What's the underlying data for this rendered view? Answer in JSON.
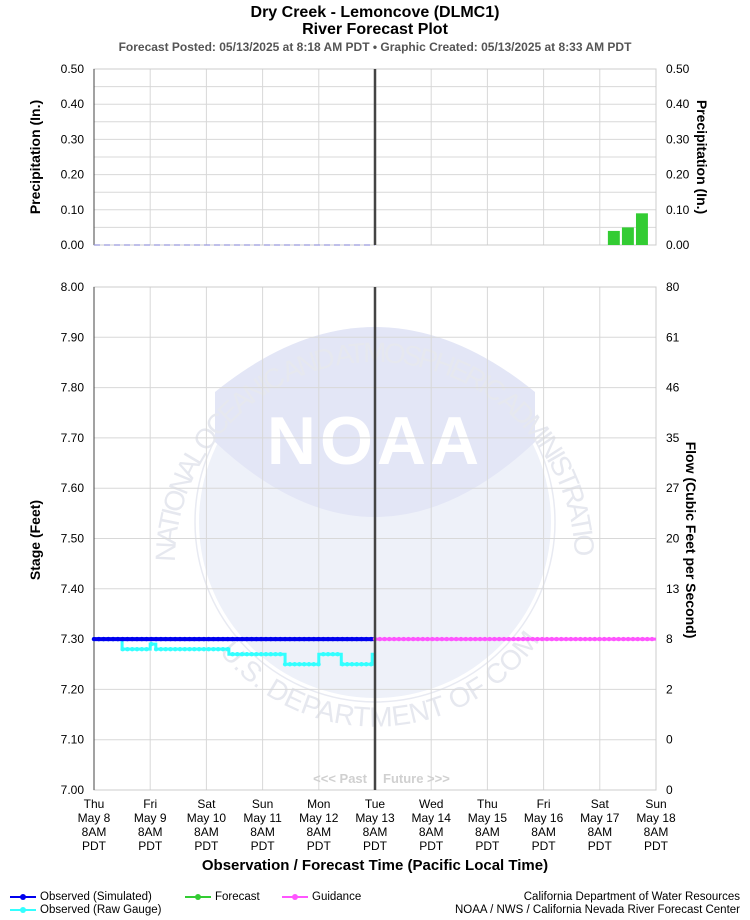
{
  "header": {
    "title_line1": "Dry Creek - Lemoncove (DLMC1)",
    "title_line2": "River Forecast Plot",
    "subtitle": "Forecast Posted: 05/13/2025 at 8:18 AM PDT  •  Graphic Created: 05/13/2025 at 8:33 AM PDT"
  },
  "chart_data": [
    {
      "type": "bar",
      "panel": "precipitation",
      "ylabel_left": "Precipitation (In.)",
      "ylabel_right": "Precipitation (In.)",
      "ylim": [
        0,
        0.5
      ],
      "yticks": [
        "0.00",
        "0.10",
        "0.20",
        "0.30",
        "0.40",
        "0.50"
      ],
      "observed_precip_dashed": {
        "x_start": 0,
        "x_end": 5,
        "value": 0.0,
        "color": "#9999dd"
      },
      "forecast_bars": [
        {
          "x": 9.25,
          "value": 0.04
        },
        {
          "x": 9.5,
          "value": 0.05
        },
        {
          "x": 9.75,
          "value": 0.09
        }
      ],
      "bar_color": "#33cc33",
      "grid": true
    },
    {
      "type": "line",
      "panel": "stage",
      "ylabel_left": "Stage (Feet)",
      "ylabel_right": "Flow (Cubic Feet per Second)",
      "ylim": [
        7.0,
        8.0
      ],
      "yticks": [
        "7.00",
        "7.10",
        "7.20",
        "7.30",
        "7.40",
        "7.50",
        "7.60",
        "7.70",
        "7.80",
        "7.90",
        "8.00"
      ],
      "flow_ticks": [
        "0",
        "0",
        "2",
        "8",
        "13",
        "20",
        "27",
        "35",
        "46",
        "61",
        "80"
      ],
      "xlabel": "Observation / Forecast Time (Pacific Local Time)",
      "x_ticks": [
        {
          "day": "Thu",
          "date": "May 8"
        },
        {
          "day": "Fri",
          "date": "May 9"
        },
        {
          "day": "Sat",
          "date": "May 10"
        },
        {
          "day": "Sun",
          "date": "May 11"
        },
        {
          "day": "Mon",
          "date": "May 12"
        },
        {
          "day": "Tue",
          "date": "May 13"
        },
        {
          "day": "Wed",
          "date": "May 14"
        },
        {
          "day": "Thu",
          "date": "May 15"
        },
        {
          "day": "Fri",
          "date": "May 16"
        },
        {
          "day": "Sat",
          "date": "May 17"
        },
        {
          "day": "Sun",
          "date": "May 18"
        }
      ],
      "x_tick_time": "8AM",
      "x_tick_tz": "PDT",
      "now_x": 5,
      "past_label": "<<< Past",
      "future_label": "Future >>>",
      "series": [
        {
          "name": "Observed (Simulated)",
          "color": "#0000ee",
          "points": [
            [
              0,
              7.3
            ],
            [
              5,
              7.3
            ]
          ]
        },
        {
          "name": "Observed (Raw Gauge)",
          "color": "#33ffff",
          "step": true,
          "points": [
            [
              0,
              7.3
            ],
            [
              0.5,
              7.28
            ],
            [
              1.0,
              7.29
            ],
            [
              1.1,
              7.28
            ],
            [
              2.4,
              7.27
            ],
            [
              3.4,
              7.25
            ],
            [
              4.0,
              7.27
            ],
            [
              4.4,
              7.25
            ],
            [
              4.95,
              7.27
            ],
            [
              5.0,
              7.27
            ]
          ]
        },
        {
          "name": "Forecast",
          "color": "#33cc33",
          "points": []
        },
        {
          "name": "Guidance",
          "color": "#ff55ff",
          "points": [
            [
              5,
              7.3
            ],
            [
              10,
              7.3
            ]
          ]
        }
      ],
      "grid": true
    }
  ],
  "footer": {
    "credit_line1": "California Department of Water Resources",
    "credit_line2": "NOAA / NWS / California Nevada River Forecast Center"
  },
  "watermark": {
    "logo_text": "NOAA",
    "ring_text_top": "NATIONAL OCEANIC AND ATMOSPHERIC ADMINISTRATION",
    "ring_text_bottom": "U.S. DEPARTMENT OF COMMERCE"
  }
}
